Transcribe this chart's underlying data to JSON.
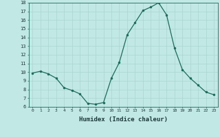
{
  "x": [
    0,
    1,
    2,
    3,
    4,
    5,
    6,
    7,
    8,
    9,
    10,
    11,
    12,
    13,
    14,
    15,
    16,
    17,
    18,
    19,
    20,
    21,
    22,
    23
  ],
  "y": [
    9.9,
    10.1,
    9.8,
    9.3,
    8.2,
    7.9,
    7.5,
    6.4,
    6.3,
    6.5,
    9.3,
    11.1,
    14.3,
    15.7,
    17.1,
    17.5,
    18.0,
    16.6,
    12.8,
    10.3,
    9.3,
    8.5,
    7.7,
    7.4
  ],
  "xlabel": "Humidex (Indice chaleur)",
  "xlim": [
    -0.5,
    23.5
  ],
  "ylim": [
    6,
    18
  ],
  "yticks": [
    6,
    7,
    8,
    9,
    10,
    11,
    12,
    13,
    14,
    15,
    16,
    17,
    18
  ],
  "xticks": [
    0,
    1,
    2,
    3,
    4,
    5,
    6,
    7,
    8,
    9,
    10,
    11,
    12,
    13,
    14,
    15,
    16,
    17,
    18,
    19,
    20,
    21,
    22,
    23
  ],
  "line_color": "#1a6b5a",
  "marker_color": "#1a6b5a",
  "bg_color": "#c2e8e5",
  "grid_major_color": "#aad4d0",
  "grid_minor_color": "#c2e8e5"
}
